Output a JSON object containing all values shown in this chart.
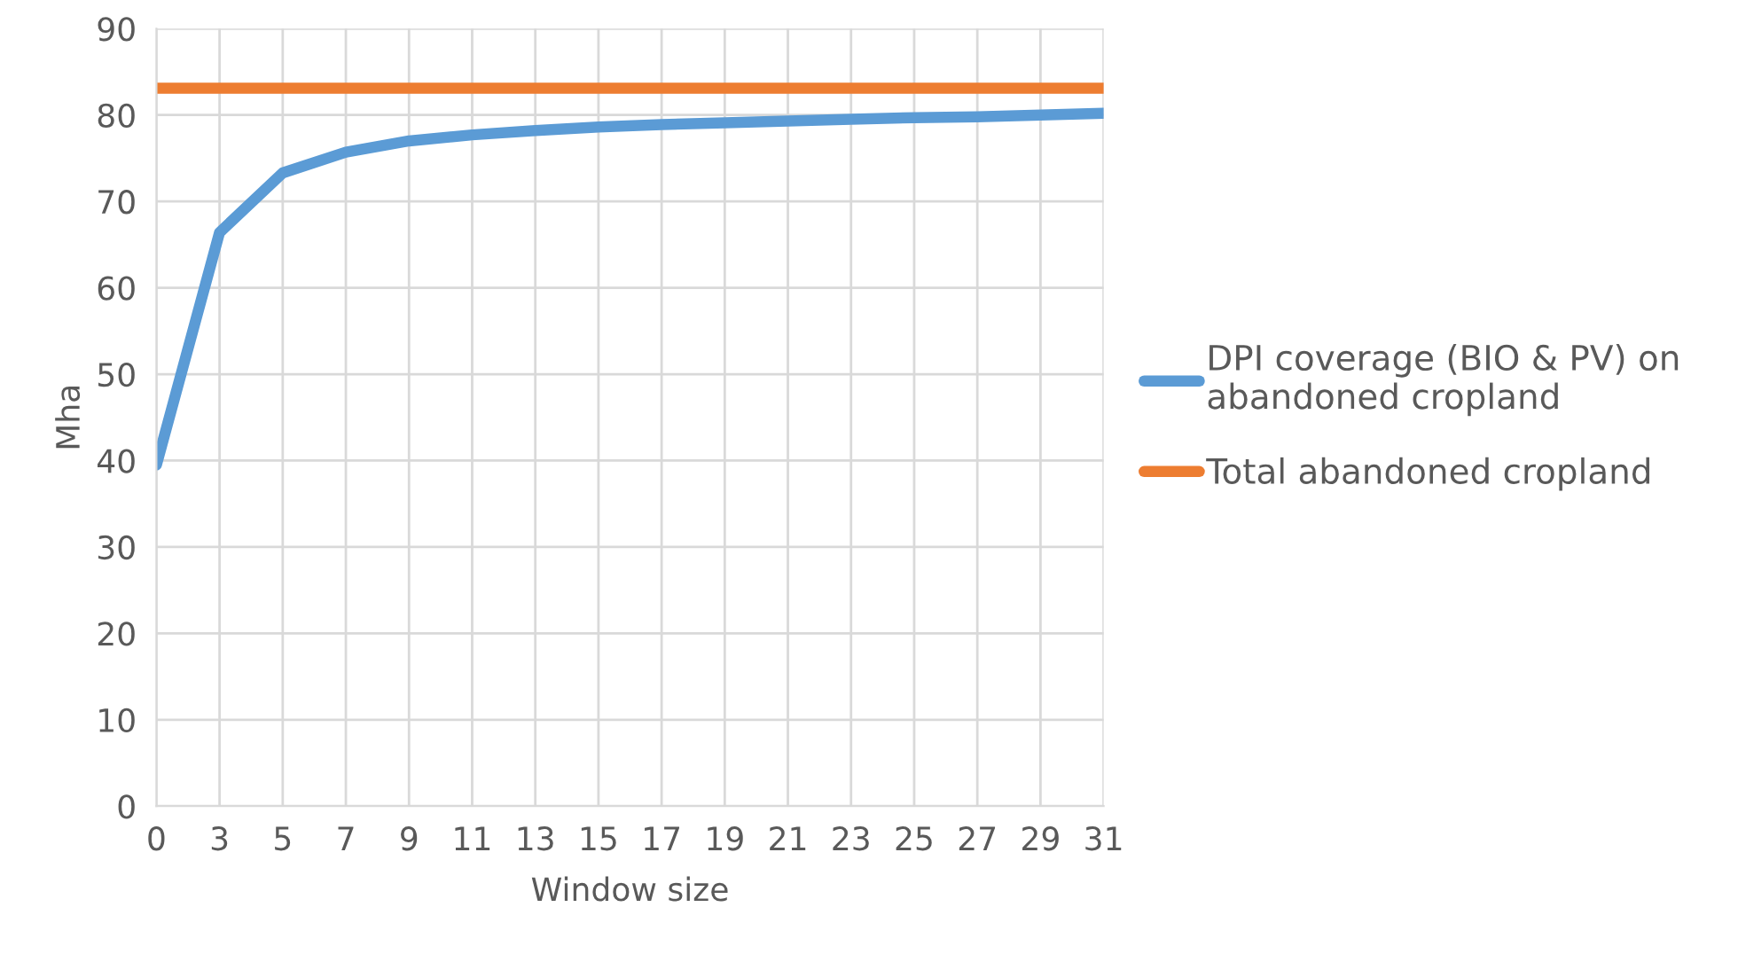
{
  "chart_data": {
    "type": "line",
    "xlabel": "Window size",
    "ylabel": "Mha",
    "categories": [
      "0",
      "3",
      "5",
      "7",
      "9",
      "11",
      "13",
      "15",
      "17",
      "19",
      "21",
      "23",
      "25",
      "27",
      "29",
      "31"
    ],
    "series": [
      {
        "name": "DPI coverage (BIO & PV) on abandoned cropland",
        "color": "#5b9bd5",
        "values": [
          39.5,
          66.4,
          73.3,
          75.7,
          77.0,
          77.7,
          78.2,
          78.6,
          78.9,
          79.1,
          79.3,
          79.5,
          79.7,
          79.8,
          80.0,
          80.2
        ]
      },
      {
        "name": "Total abandoned cropland",
        "color": "#ed7d31",
        "values": [
          83.1,
          83.1,
          83.1,
          83.1,
          83.1,
          83.1,
          83.1,
          83.1,
          83.1,
          83.1,
          83.1,
          83.1,
          83.1,
          83.1,
          83.1,
          83.1
        ]
      }
    ],
    "ylim": [
      0,
      90
    ],
    "yticks": [
      0,
      10,
      20,
      30,
      40,
      50,
      60,
      70,
      80,
      90
    ],
    "grid": true,
    "legend": "right",
    "marker": "none",
    "line_style": "solid"
  }
}
